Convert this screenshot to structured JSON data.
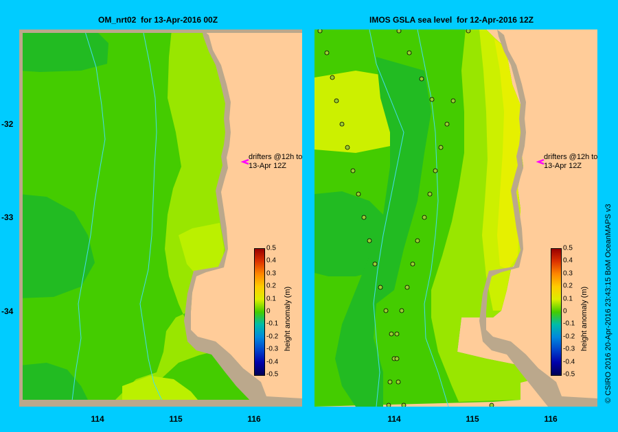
{
  "panels": [
    {
      "title": "OM_nrt02  for 13-Apr-2016 00Z"
    },
    {
      "title": "IMOS GSLA sea level  for 12-Apr-2016 12Z"
    }
  ],
  "axes": {
    "x_ticks": [
      "114",
      "115",
      "116"
    ],
    "y_ticks": [
      "-32",
      "-33",
      "-34"
    ]
  },
  "colorbar": {
    "title": "height anomaly (m)",
    "ticks": [
      "0.5",
      "0.4",
      "0.3",
      "0.2",
      "0.1",
      "0",
      "-0.1",
      "-0.2",
      "-0.3",
      "-0.4",
      "-0.5"
    ]
  },
  "drifter_label": {
    "line1": "drifters @12h to",
    "line2": "13-Apr 12Z"
  },
  "credit": "© CSIRO 2016   20-Apr-2016 23:43:15 BoM OceanMAPS v3",
  "colors": {
    "background": "#00ccff",
    "land": "#ffcc99",
    "coast": "#bba88c",
    "contour_line": "#44ddee",
    "drifter_marker": "#ff00ff"
  }
}
